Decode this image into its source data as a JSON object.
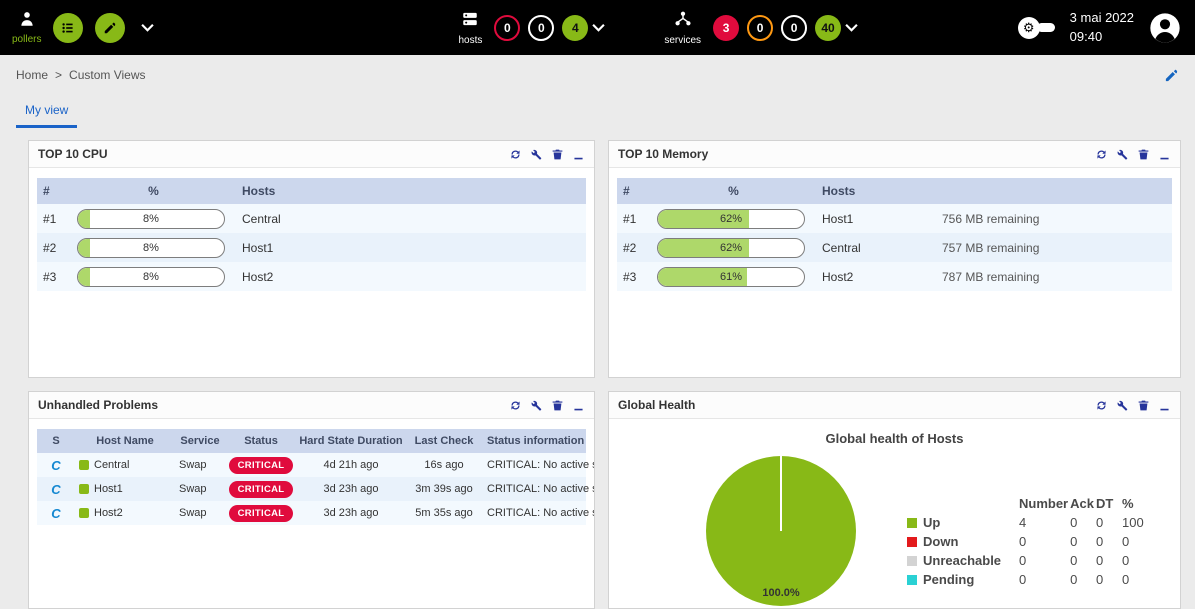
{
  "icons": {
    "gear": "⚙",
    "centreon_logo": "C"
  },
  "colors": {
    "green": "#88b917",
    "red": "#e00b3d",
    "orange": "#ff9913",
    "bar_fill": "#aed86a"
  },
  "topbar": {
    "pollers": {
      "label": "pollers"
    },
    "hosts": {
      "label": "hosts",
      "badges": [
        {
          "value": "0"
        },
        {
          "value": "0"
        },
        {
          "value": "4"
        }
      ]
    },
    "services": {
      "label": "services",
      "badges": [
        {
          "value": "3"
        },
        {
          "value": "0"
        },
        {
          "value": "0"
        },
        {
          "value": "40"
        }
      ]
    },
    "clock": {
      "date": "3 mai 2022",
      "time": "09:40"
    }
  },
  "breadcrumb": {
    "home": "Home",
    "separator": ">",
    "current": "Custom Views"
  },
  "tabs": {
    "my_view": "My view"
  },
  "panels": {
    "cpu": {
      "title": "TOP 10 CPU",
      "columns": {
        "rank": "#",
        "percent": "%",
        "hosts": "Hosts"
      },
      "rows": [
        {
          "rank": "#1",
          "percent": 8,
          "percent_label": "8%",
          "host": "Central"
        },
        {
          "rank": "#2",
          "percent": 8,
          "percent_label": "8%",
          "host": "Host1"
        },
        {
          "rank": "#3",
          "percent": 8,
          "percent_label": "8%",
          "host": "Host2"
        }
      ]
    },
    "memory": {
      "title": "TOP 10 Memory",
      "columns": {
        "rank": "#",
        "percent": "%",
        "hosts": "Hosts"
      },
      "rows": [
        {
          "rank": "#1",
          "percent": 62,
          "percent_label": "62%",
          "host": "Host1",
          "remaining": "756 MB remaining"
        },
        {
          "rank": "#2",
          "percent": 62,
          "percent_label": "62%",
          "host": "Central",
          "remaining": "757 MB remaining"
        },
        {
          "rank": "#3",
          "percent": 61,
          "percent_label": "61%",
          "host": "Host2",
          "remaining": "787 MB remaining"
        }
      ]
    },
    "problems": {
      "title": "Unhandled Problems",
      "columns": {
        "s": "S",
        "host": "Host Name",
        "service": "Service",
        "status": "Status",
        "duration": "Hard State Duration",
        "last_check": "Last Check",
        "info": "Status information"
      },
      "rows": [
        {
          "host": "Central",
          "service": "Swap",
          "status": "CRITICAL",
          "duration": "4d 21h ago",
          "last_check": "16s ago",
          "info": "CRITICAL: No active swap"
        },
        {
          "host": "Host1",
          "service": "Swap",
          "status": "CRITICAL",
          "duration": "3d 23h ago",
          "last_check": "3m 39s ago",
          "info": "CRITICAL: No active swap"
        },
        {
          "host": "Host2",
          "service": "Swap",
          "status": "CRITICAL",
          "duration": "3d 23h ago",
          "last_check": "5m 35s ago",
          "info": "CRITICAL: No active swap"
        }
      ]
    },
    "health": {
      "title": "Global Health",
      "chart_title": "Global health of Hosts",
      "pie_label": "100.0%",
      "headers": {
        "number": "Number",
        "ack": "Ack",
        "dt": "DT",
        "pct": "%"
      },
      "legend": [
        {
          "label": "Up",
          "color": "#88b917",
          "number": "4",
          "ack": "0",
          "dt": "0",
          "pct": "100"
        },
        {
          "label": "Down",
          "color": "#e31a1c",
          "number": "0",
          "ack": "0",
          "dt": "0",
          "pct": "0"
        },
        {
          "label": "Unreachable",
          "color": "#d3d3d3",
          "number": "0",
          "ack": "0",
          "dt": "0",
          "pct": "0"
        },
        {
          "label": "Pending",
          "color": "#2ad1d4",
          "number": "0",
          "ack": "0",
          "dt": "0",
          "pct": "0"
        }
      ]
    }
  },
  "chart_data": {
    "type": "pie",
    "title": "Global health of Hosts",
    "labels": [
      "Up",
      "Down",
      "Unreachable",
      "Pending"
    ],
    "values": [
      100,
      0,
      0,
      0
    ],
    "colors": [
      "#88b917",
      "#e31a1c",
      "#d3d3d3",
      "#2ad1d4"
    ],
    "annotation": "100.0%",
    "legend_position": "right"
  }
}
